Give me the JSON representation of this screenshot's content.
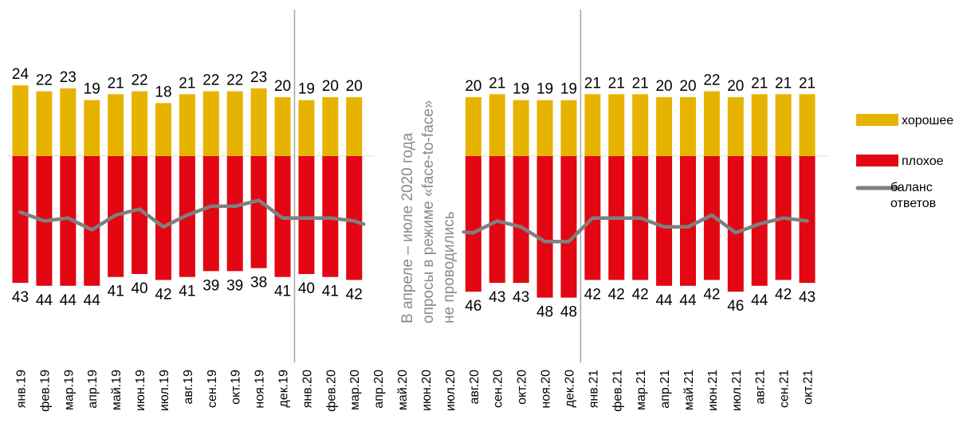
{
  "chart_data": {
    "type": "bar",
    "categories": [
      "янв.19",
      "фев.19",
      "мар.19",
      "апр.19",
      "май.19",
      "июн.19",
      "июл.19",
      "авг.19",
      "сен.19",
      "окт.19",
      "ноя.19",
      "дек.19",
      "янв.20",
      "фев.20",
      "мар.20",
      "апр.20",
      "май.20",
      "июн.20",
      "июл.20",
      "авг.20",
      "сен.20",
      "окт.20",
      "ноя.20",
      "дек.20",
      "янв.21",
      "фев.21",
      "мар.21",
      "апр.21",
      "май.21",
      "июн.21",
      "июл.21",
      "авг.21",
      "сен.21",
      "окт.21"
    ],
    "series": [
      {
        "name": "хорошее",
        "color": "#e6b400",
        "values": [
          24,
          22,
          23,
          19,
          21,
          22,
          18,
          21,
          22,
          22,
          23,
          20,
          19,
          20,
          20,
          null,
          null,
          null,
          null,
          20,
          21,
          19,
          19,
          19,
          21,
          21,
          21,
          20,
          20,
          22,
          20,
          21,
          21,
          21
        ]
      },
      {
        "name": "плохое",
        "color": "#e30613",
        "values": [
          43,
          44,
          44,
          44,
          41,
          40,
          42,
          41,
          39,
          39,
          38,
          41,
          40,
          41,
          42,
          null,
          null,
          null,
          null,
          46,
          43,
          43,
          48,
          48,
          42,
          42,
          42,
          44,
          44,
          42,
          46,
          44,
          42,
          43
        ]
      },
      {
        "name": "баланс ответов",
        "color": "#7f7f7f",
        "type": "line",
        "values": [
          -19,
          -22,
          -21,
          -25,
          -20,
          -18,
          -24,
          -20,
          -17,
          -17,
          -15,
          -21,
          -21,
          -21,
          -22,
          null,
          null,
          null,
          null,
          -26,
          -22,
          -24,
          -29,
          -29,
          -21,
          -21,
          -21,
          -24,
          -24,
          -20,
          -26,
          -23,
          -21,
          -22
        ]
      }
    ],
    "annotation": "В апреле – июле 2020 года опросы в режиме «face-to-face» не проводились",
    "legend_position": "right",
    "grid": false
  }
}
